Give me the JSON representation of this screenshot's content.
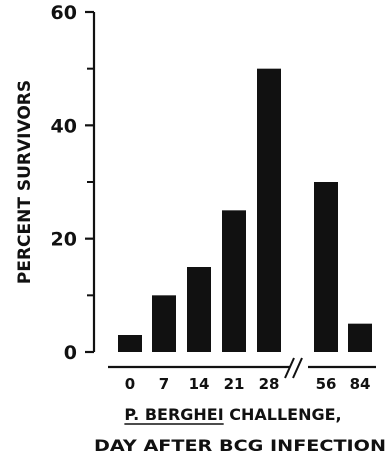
{
  "chart_data": {
    "type": "bar",
    "categories": [
      "0",
      "7",
      "14",
      "21",
      "28",
      "56",
      "84"
    ],
    "values": [
      3,
      10,
      15,
      25,
      50,
      30,
      5
    ],
    "ylim": [
      0,
      60
    ],
    "yticks": [
      "0",
      "20",
      "40",
      "60"
    ],
    "ylabel": "PERCENT SURVIVORS",
    "xlabel_prefix": "P. BERGHEI",
    "xlabel_line1_rest": " CHALLENGE,",
    "xlabel_line2": "DAY AFTER BCG INFECTION",
    "axis_break": true,
    "bar_color": "#111111"
  }
}
